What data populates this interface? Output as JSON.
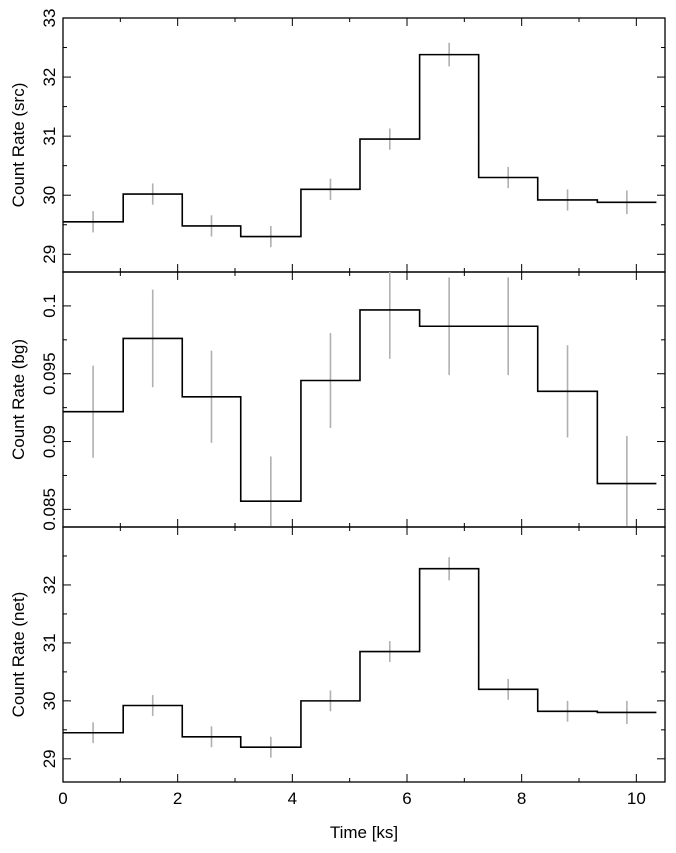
{
  "chart_data": [
    {
      "type": "line",
      "style": "step-histogram-with-error-bars",
      "ylabel": "Count Rate (src)",
      "xlim": [
        0,
        10.5
      ],
      "ylim": [
        28.7,
        33.0
      ],
      "yticks_major": [
        29,
        30,
        31,
        32,
        33
      ],
      "yticks_minor_step": 0.5,
      "bins": [
        {
          "x0": 0.0,
          "x1": 1.05,
          "y": 29.55,
          "err": 0.18
        },
        {
          "x0": 1.05,
          "x1": 2.08,
          "y": 30.02,
          "err": 0.18
        },
        {
          "x0": 2.08,
          "x1": 3.1,
          "y": 29.48,
          "err": 0.18
        },
        {
          "x0": 3.1,
          "x1": 4.15,
          "y": 29.3,
          "err": 0.18
        },
        {
          "x0": 4.15,
          "x1": 5.18,
          "y": 30.1,
          "err": 0.18
        },
        {
          "x0": 5.18,
          "x1": 6.22,
          "y": 30.95,
          "err": 0.18
        },
        {
          "x0": 6.22,
          "x1": 7.25,
          "y": 32.38,
          "err": 0.2
        },
        {
          "x0": 7.25,
          "x1": 8.28,
          "y": 30.3,
          "err": 0.18
        },
        {
          "x0": 8.28,
          "x1": 9.32,
          "y": 29.92,
          "err": 0.18
        },
        {
          "x0": 9.32,
          "x1": 10.35,
          "y": 29.88,
          "err": 0.2
        }
      ]
    },
    {
      "type": "line",
      "style": "step-histogram-with-error-bars",
      "ylabel": "Count Rate (bg)",
      "xlim": [
        0,
        10.5
      ],
      "ylim": [
        0.0837,
        0.1025
      ],
      "yticks_major": [
        0.085,
        0.09,
        0.095,
        0.1
      ],
      "ytick_labels": [
        "0.085",
        "0.09",
        "0.095",
        "0.1"
      ],
      "yticks_minor_step": 0.0025,
      "bins": [
        {
          "x0": 0.0,
          "x1": 1.05,
          "y": 0.0922,
          "err": 0.0034
        },
        {
          "x0": 1.05,
          "x1": 2.08,
          "y": 0.0976,
          "err": 0.0036
        },
        {
          "x0": 2.08,
          "x1": 3.1,
          "y": 0.0933,
          "err": 0.0034
        },
        {
          "x0": 3.1,
          "x1": 4.15,
          "y": 0.0856,
          "err": 0.0033
        },
        {
          "x0": 4.15,
          "x1": 5.18,
          "y": 0.0945,
          "err": 0.0035
        },
        {
          "x0": 5.18,
          "x1": 6.22,
          "y": 0.0997,
          "err": 0.0036
        },
        {
          "x0": 6.22,
          "x1": 7.25,
          "y": 0.0985,
          "err": 0.0036
        },
        {
          "x0": 7.25,
          "x1": 8.28,
          "y": 0.0985,
          "err": 0.0036
        },
        {
          "x0": 8.28,
          "x1": 9.32,
          "y": 0.0937,
          "err": 0.0034
        },
        {
          "x0": 9.32,
          "x1": 10.35,
          "y": 0.0869,
          "err": 0.0035
        }
      ]
    },
    {
      "type": "line",
      "style": "step-histogram-with-error-bars",
      "ylabel": "Count Rate (net)",
      "xlabel": "Time [ks]",
      "xlim": [
        0,
        10.5
      ],
      "xticks_major": [
        0,
        2,
        4,
        6,
        8,
        10
      ],
      "xticks_minor_step": 1,
      "ylim": [
        28.6,
        33.0
      ],
      "yticks_major": [
        29,
        30,
        31,
        32
      ],
      "yticks_minor_step": 0.5,
      "bins": [
        {
          "x0": 0.0,
          "x1": 1.05,
          "y": 29.45,
          "err": 0.18
        },
        {
          "x0": 1.05,
          "x1": 2.08,
          "y": 29.92,
          "err": 0.18
        },
        {
          "x0": 2.08,
          "x1": 3.1,
          "y": 29.38,
          "err": 0.18
        },
        {
          "x0": 3.1,
          "x1": 4.15,
          "y": 29.2,
          "err": 0.18
        },
        {
          "x0": 4.15,
          "x1": 5.18,
          "y": 30.0,
          "err": 0.18
        },
        {
          "x0": 5.18,
          "x1": 6.22,
          "y": 30.85,
          "err": 0.18
        },
        {
          "x0": 6.22,
          "x1": 7.25,
          "y": 32.28,
          "err": 0.2
        },
        {
          "x0": 7.25,
          "x1": 8.28,
          "y": 30.2,
          "err": 0.18
        },
        {
          "x0": 8.28,
          "x1": 9.32,
          "y": 29.82,
          "err": 0.18
        },
        {
          "x0": 9.32,
          "x1": 10.35,
          "y": 29.8,
          "err": 0.2
        }
      ]
    }
  ],
  "colors": {
    "step_line": "#000000",
    "error_bar": "#b0b0b0"
  }
}
